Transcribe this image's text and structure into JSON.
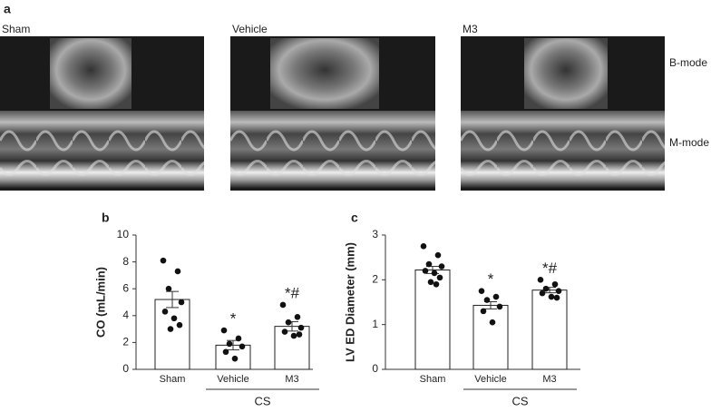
{
  "panel_a": {
    "label": "a",
    "images": [
      {
        "title": "Sham"
      },
      {
        "title": "Vehicle"
      },
      {
        "title": "M3"
      }
    ],
    "modes": [
      "B-mode",
      "M-mode"
    ]
  },
  "chart_data": [
    {
      "type": "bar",
      "panel_label": "b",
      "ylabel": "CO (mL/min)",
      "categories": [
        "Sham",
        "Vehicle",
        "M3"
      ],
      "group_label": "CS",
      "values": [
        5.2,
        1.8,
        3.2
      ],
      "errors": [
        0.6,
        0.35,
        0.35
      ],
      "points": [
        [
          8.1,
          7.3,
          6.0,
          5.0,
          4.3,
          3.8,
          3.3,
          3.0
        ],
        [
          2.9,
          2.3,
          1.9,
          1.7,
          1.3,
          0.8
        ],
        [
          4.8,
          3.9,
          3.5,
          3.1,
          2.8,
          2.5,
          2.6
        ]
      ],
      "annotations": [
        null,
        "*",
        "*#"
      ],
      "color": "#ffffff",
      "ylim": [
        0,
        10
      ],
      "yticks": [
        0,
        2,
        4,
        6,
        8,
        10
      ]
    },
    {
      "type": "bar",
      "panel_label": "c",
      "ylabel": "LV ED Diameter (mm)",
      "categories": [
        "Sham",
        "Vehicle",
        "M3"
      ],
      "group_label": "CS",
      "values": [
        2.22,
        1.43,
        1.77
      ],
      "errors": [
        0.08,
        0.08,
        0.06
      ],
      "points": [
        [
          2.75,
          2.55,
          2.35,
          2.3,
          2.2,
          2.15,
          2.05,
          1.95,
          1.9
        ],
        [
          1.75,
          1.62,
          1.55,
          1.4,
          1.3,
          1.05
        ],
        [
          2.0,
          1.9,
          1.8,
          1.75,
          1.7,
          1.62,
          1.6
        ]
      ],
      "annotations": [
        null,
        "*",
        "*#"
      ],
      "color": "#ffffff",
      "ylim": [
        0,
        3
      ],
      "yticks": [
        0,
        1,
        2,
        3
      ]
    }
  ]
}
